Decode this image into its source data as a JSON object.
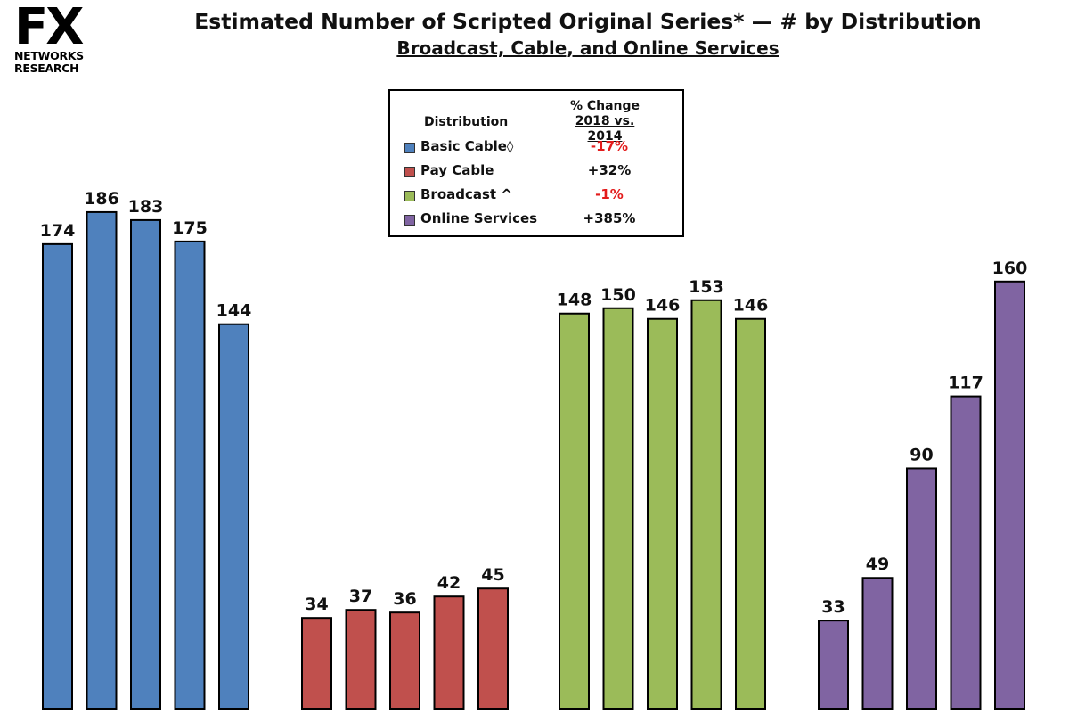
{
  "logo": {
    "mark": "FX",
    "line1": "NETWORKS",
    "line2": "RESEARCH"
  },
  "header": {
    "title": "Estimated Number of Scripted Original Series* — # by Distribution",
    "subtitle": "Broadcast, Cable, and Online Services"
  },
  "legend": {
    "col_distribution": "Distribution",
    "col_change_line1": "% Change",
    "col_change_line2": "2018 vs. 2014",
    "items": [
      {
        "label": "Basic Cable◊",
        "change": "-17%",
        "color": "#4f81bd",
        "change_color": "#e31c1c"
      },
      {
        "label": "Pay Cable",
        "change": "+32%",
        "color": "#c0504d",
        "change_color": "#111111"
      },
      {
        "label": "Broadcast ^",
        "change": "-1%",
        "color": "#9bbb59",
        "change_color": "#e31c1c"
      },
      {
        "label": "Online Services",
        "change": "+385%",
        "color": "#8064a2",
        "change_color": "#111111"
      }
    ]
  },
  "chart_data": {
    "type": "bar",
    "groups": [
      "Basic Cable◊",
      "Pay Cable",
      "Broadcast ^",
      "Online Services"
    ],
    "series": [
      {
        "name": "Basic Cable◊",
        "color": "#4f81bd",
        "values": [
          174,
          186,
          183,
          175,
          144
        ]
      },
      {
        "name": "Pay Cable",
        "color": "#c0504d",
        "values": [
          34,
          37,
          36,
          42,
          45
        ]
      },
      {
        "name": "Broadcast ^",
        "color": "#9bbb59",
        "values": [
          148,
          150,
          146,
          153,
          146
        ]
      },
      {
        "name": "Online Services",
        "color": "#8064a2",
        "values": [
          33,
          49,
          90,
          117,
          160
        ]
      }
    ],
    "ylim": [
      0,
      186
    ],
    "grid": false,
    "legend_position": "top-center"
  }
}
